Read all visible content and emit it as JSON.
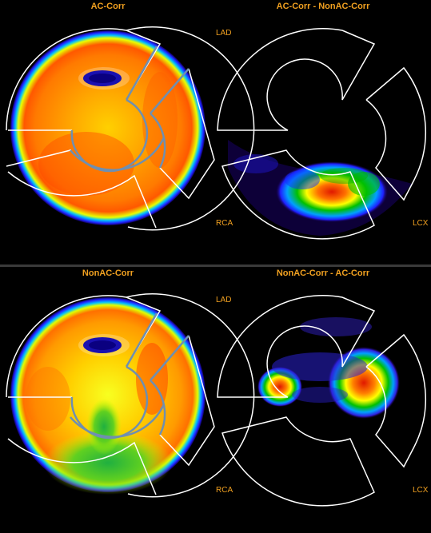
{
  "panels": [
    {
      "left_title": "AC-Corr",
      "right_title": "AC-Corr - NonAC-Corr",
      "labels": {
        "lad": "LAD",
        "rca": "RCA",
        "lcx": "LCX"
      }
    },
    {
      "left_title": "NonAC-Corr",
      "right_title": "NonAC-Corr - AC-Corr",
      "labels": {
        "lad": "LAD",
        "rca": "RCA",
        "lcx": "LCX"
      }
    }
  ],
  "colors": {
    "background": "#000000",
    "title_text": "#f0a020",
    "divider": "#3a3a3a",
    "territory_outline": "#ffffff",
    "segment_line": "#6f8fb0",
    "colormap": [
      "#1a0070",
      "#2020ff",
      "#00d0ff",
      "#00c000",
      "#c0ff00",
      "#ffff00",
      "#ff9000",
      "#e02000"
    ]
  }
}
